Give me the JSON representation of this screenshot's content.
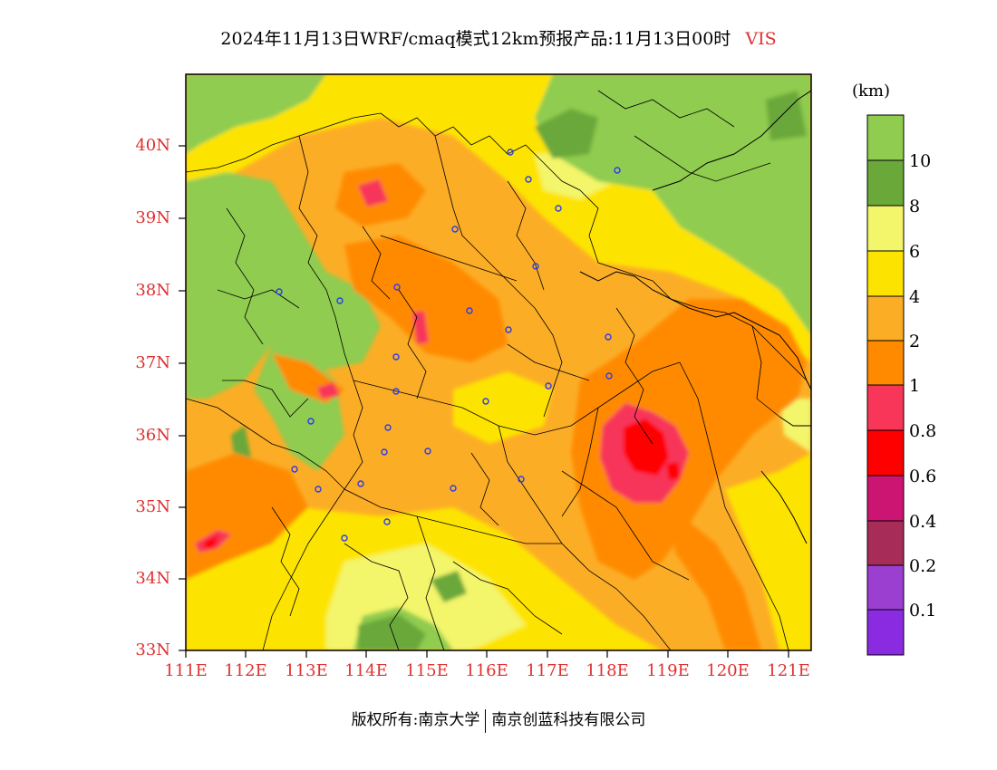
{
  "title": {
    "main": "2024年11月13日WRF/cmaq模式12km预报产品:11月13日00时",
    "variable": "VIS"
  },
  "map": {
    "lat_labels": [
      "40N",
      "39N",
      "38N",
      "37N",
      "36N",
      "35N",
      "34N",
      "33N"
    ],
    "lon_labels": [
      "111E",
      "112E",
      "113E",
      "114E",
      "115E",
      "116E",
      "117E",
      "118E",
      "119E",
      "120E",
      "121E"
    ],
    "lon_range": [
      111,
      121.4
    ],
    "lat_range": [
      33,
      41
    ],
    "station_marker_color": "#2a3df0"
  },
  "colorbar": {
    "unit": "(km)",
    "levels": [
      {
        "label": "10",
        "color": "#8fcc4f"
      },
      {
        "label": "8",
        "color": "#6aa83a"
      },
      {
        "label": "6",
        "color": "#f3f56b"
      },
      {
        "label": "4",
        "color": "#fde400"
      },
      {
        "label": "2",
        "color": "#fcad26"
      },
      {
        "label": "1",
        "color": "#ff8a00"
      },
      {
        "label": "0.8",
        "color": "#f7365a"
      },
      {
        "label": "0.6",
        "color": "#ff0000"
      },
      {
        "label": "0.4",
        "color": "#cc1572"
      },
      {
        "label": "0.2",
        "color": "#a82c58"
      },
      {
        "label": "0.1",
        "color": "#9b3fd0"
      },
      {
        "label": "",
        "color": "#8a2be2"
      }
    ]
  },
  "copyright": {
    "left": "版权所有:南京大学",
    "right": "南京创蓝科技有限公司"
  }
}
